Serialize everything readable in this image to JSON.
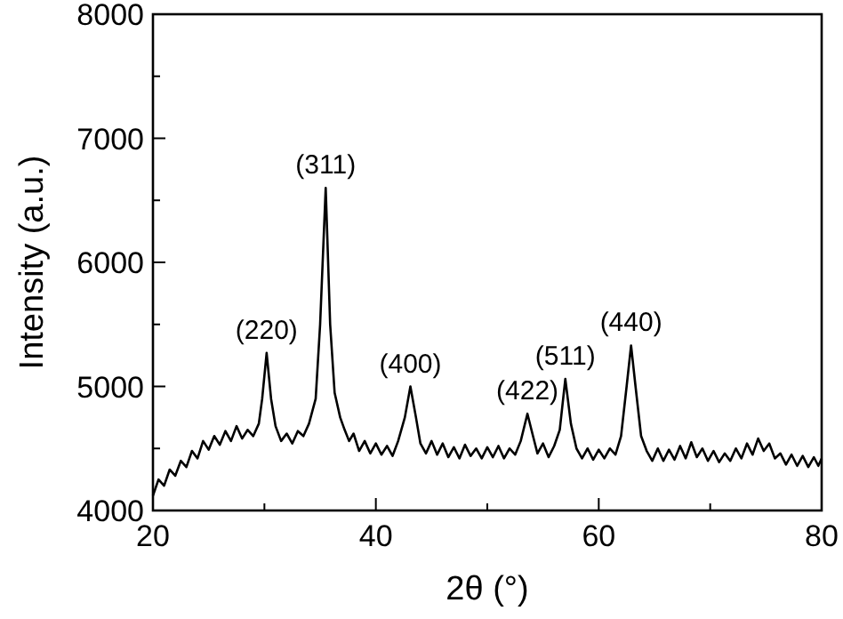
{
  "chart_data": {
    "type": "line",
    "xlabel": "2θ (°)",
    "ylabel": "Intensity (a.u.)",
    "xlim": [
      20,
      80
    ],
    "ylim": [
      4000,
      8000
    ],
    "xticks": [
      20,
      {
        "value": 30,
        "label": null
      },
      40,
      {
        "value": 50,
        "label": null
      },
      60,
      {
        "value": 70,
        "label": null
      },
      80
    ],
    "yticks": [
      4000,
      {
        "value": 4500,
        "label": null
      },
      5000,
      {
        "value": 5500,
        "label": null
      },
      6000,
      {
        "value": 6500,
        "label": null
      },
      7000,
      {
        "value": 7500,
        "label": null
      },
      8000
    ],
    "grid": false,
    "marker": "none",
    "line_style": "solid",
    "annotations": [
      {
        "text": "(220)",
        "x": 30.2,
        "y": 5270
      },
      {
        "text": "(311)",
        "x": 35.5,
        "y": 6600
      },
      {
        "text": "(400)",
        "x": 43.1,
        "y": 5000
      },
      {
        "text": "(422)",
        "x": 53.6,
        "y": 4780
      },
      {
        "text": "(511)",
        "x": 57,
        "y": 5060
      },
      {
        "text": "(440)",
        "x": 62.9,
        "y": 5330
      }
    ],
    "series": [
      {
        "color": "#000000",
        "x": [
          20,
          20.5,
          21,
          21.5,
          22,
          22.5,
          23,
          23.5,
          24,
          24.5,
          25,
          25.5,
          26,
          26.5,
          27,
          27.5,
          28,
          28.5,
          29,
          29.5,
          29.8,
          30.2,
          30.6,
          31,
          31.5,
          32,
          32.5,
          33,
          33.5,
          34,
          34.6,
          35,
          35.5,
          35.9,
          36.3,
          36.8,
          37.2,
          37.6,
          38,
          38.5,
          39,
          39.5,
          40,
          40.5,
          41,
          41.5,
          42,
          42.6,
          43.1,
          43.6,
          44,
          44.5,
          45,
          45.5,
          46,
          46.5,
          47,
          47.5,
          48,
          48.5,
          49,
          49.5,
          50,
          50.5,
          51,
          51.5,
          52,
          52.5,
          53,
          53.6,
          54.1,
          54.5,
          55,
          55.5,
          56,
          56.5,
          57,
          57.5,
          58,
          58.5,
          59,
          59.5,
          60,
          60.5,
          61,
          61.5,
          62,
          62.5,
          62.9,
          63.3,
          63.8,
          64.3,
          64.8,
          65.3,
          65.8,
          66.3,
          66.8,
          67.3,
          67.8,
          68.3,
          68.8,
          69.3,
          69.8,
          70.3,
          70.8,
          71.3,
          71.8,
          72.3,
          72.8,
          73.3,
          73.8,
          74.3,
          74.8,
          75.3,
          75.8,
          76.3,
          76.8,
          77.3,
          77.8,
          78.3,
          78.8,
          79.3,
          79.7,
          80
        ],
        "values": [
          4120,
          4250,
          4200,
          4330,
          4280,
          4400,
          4350,
          4480,
          4420,
          4560,
          4490,
          4600,
          4530,
          4640,
          4560,
          4680,
          4580,
          4650,
          4600,
          4700,
          4900,
          5270,
          4900,
          4680,
          4560,
          4620,
          4540,
          4640,
          4600,
          4700,
          4900,
          5500,
          6600,
          5500,
          4950,
          4750,
          4650,
          4560,
          4620,
          4480,
          4560,
          4460,
          4540,
          4450,
          4520,
          4440,
          4560,
          4750,
          5000,
          4750,
          4540,
          4460,
          4560,
          4450,
          4540,
          4430,
          4510,
          4420,
          4530,
          4440,
          4500,
          4420,
          4510,
          4430,
          4520,
          4420,
          4500,
          4450,
          4560,
          4780,
          4600,
          4460,
          4540,
          4430,
          4520,
          4650,
          5060,
          4700,
          4500,
          4420,
          4500,
          4410,
          4490,
          4420,
          4500,
          4450,
          4600,
          5000,
          5330,
          5000,
          4600,
          4480,
          4400,
          4500,
          4400,
          4490,
          4410,
          4520,
          4420,
          4550,
          4430,
          4500,
          4400,
          4480,
          4390,
          4460,
          4400,
          4500,
          4420,
          4540,
          4450,
          4580,
          4480,
          4540,
          4420,
          4460,
          4370,
          4450,
          4360,
          4440,
          4350,
          4430,
          4360,
          4420
        ]
      }
    ]
  }
}
